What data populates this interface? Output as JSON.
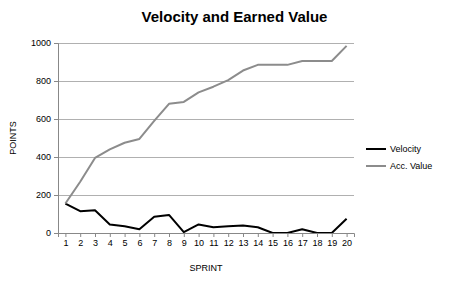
{
  "chart_data": {
    "type": "line",
    "title": "Velocity and Earned Value",
    "x_label": "SPRINT",
    "y_label": "POINTS",
    "categories": [
      "1",
      "2",
      "3",
      "4",
      "5",
      "6",
      "7",
      "8",
      "9",
      "10",
      "11",
      "12",
      "13",
      "14",
      "15",
      "16",
      "17",
      "18",
      "19",
      "20"
    ],
    "series": [
      {
        "name": "Velocity",
        "color": "#000000",
        "values": [
          155,
          115,
          120,
          45,
          35,
          20,
          85,
          95,
          5,
          45,
          30,
          35,
          40,
          30,
          0,
          0,
          20,
          0,
          0,
          75
        ]
      },
      {
        "name": "Acc. Value",
        "color": "#8c8c8c",
        "values": [
          155,
          270,
          395,
          440,
          475,
          495,
          590,
          680,
          690,
          740,
          770,
          805,
          855,
          885,
          885,
          885,
          905,
          905,
          905,
          985
        ]
      }
    ],
    "ylim": [
      0,
      1000
    ],
    "yticks": [
      0,
      200,
      400,
      600,
      800,
      1000
    ],
    "grid": true,
    "legend": "right"
  }
}
